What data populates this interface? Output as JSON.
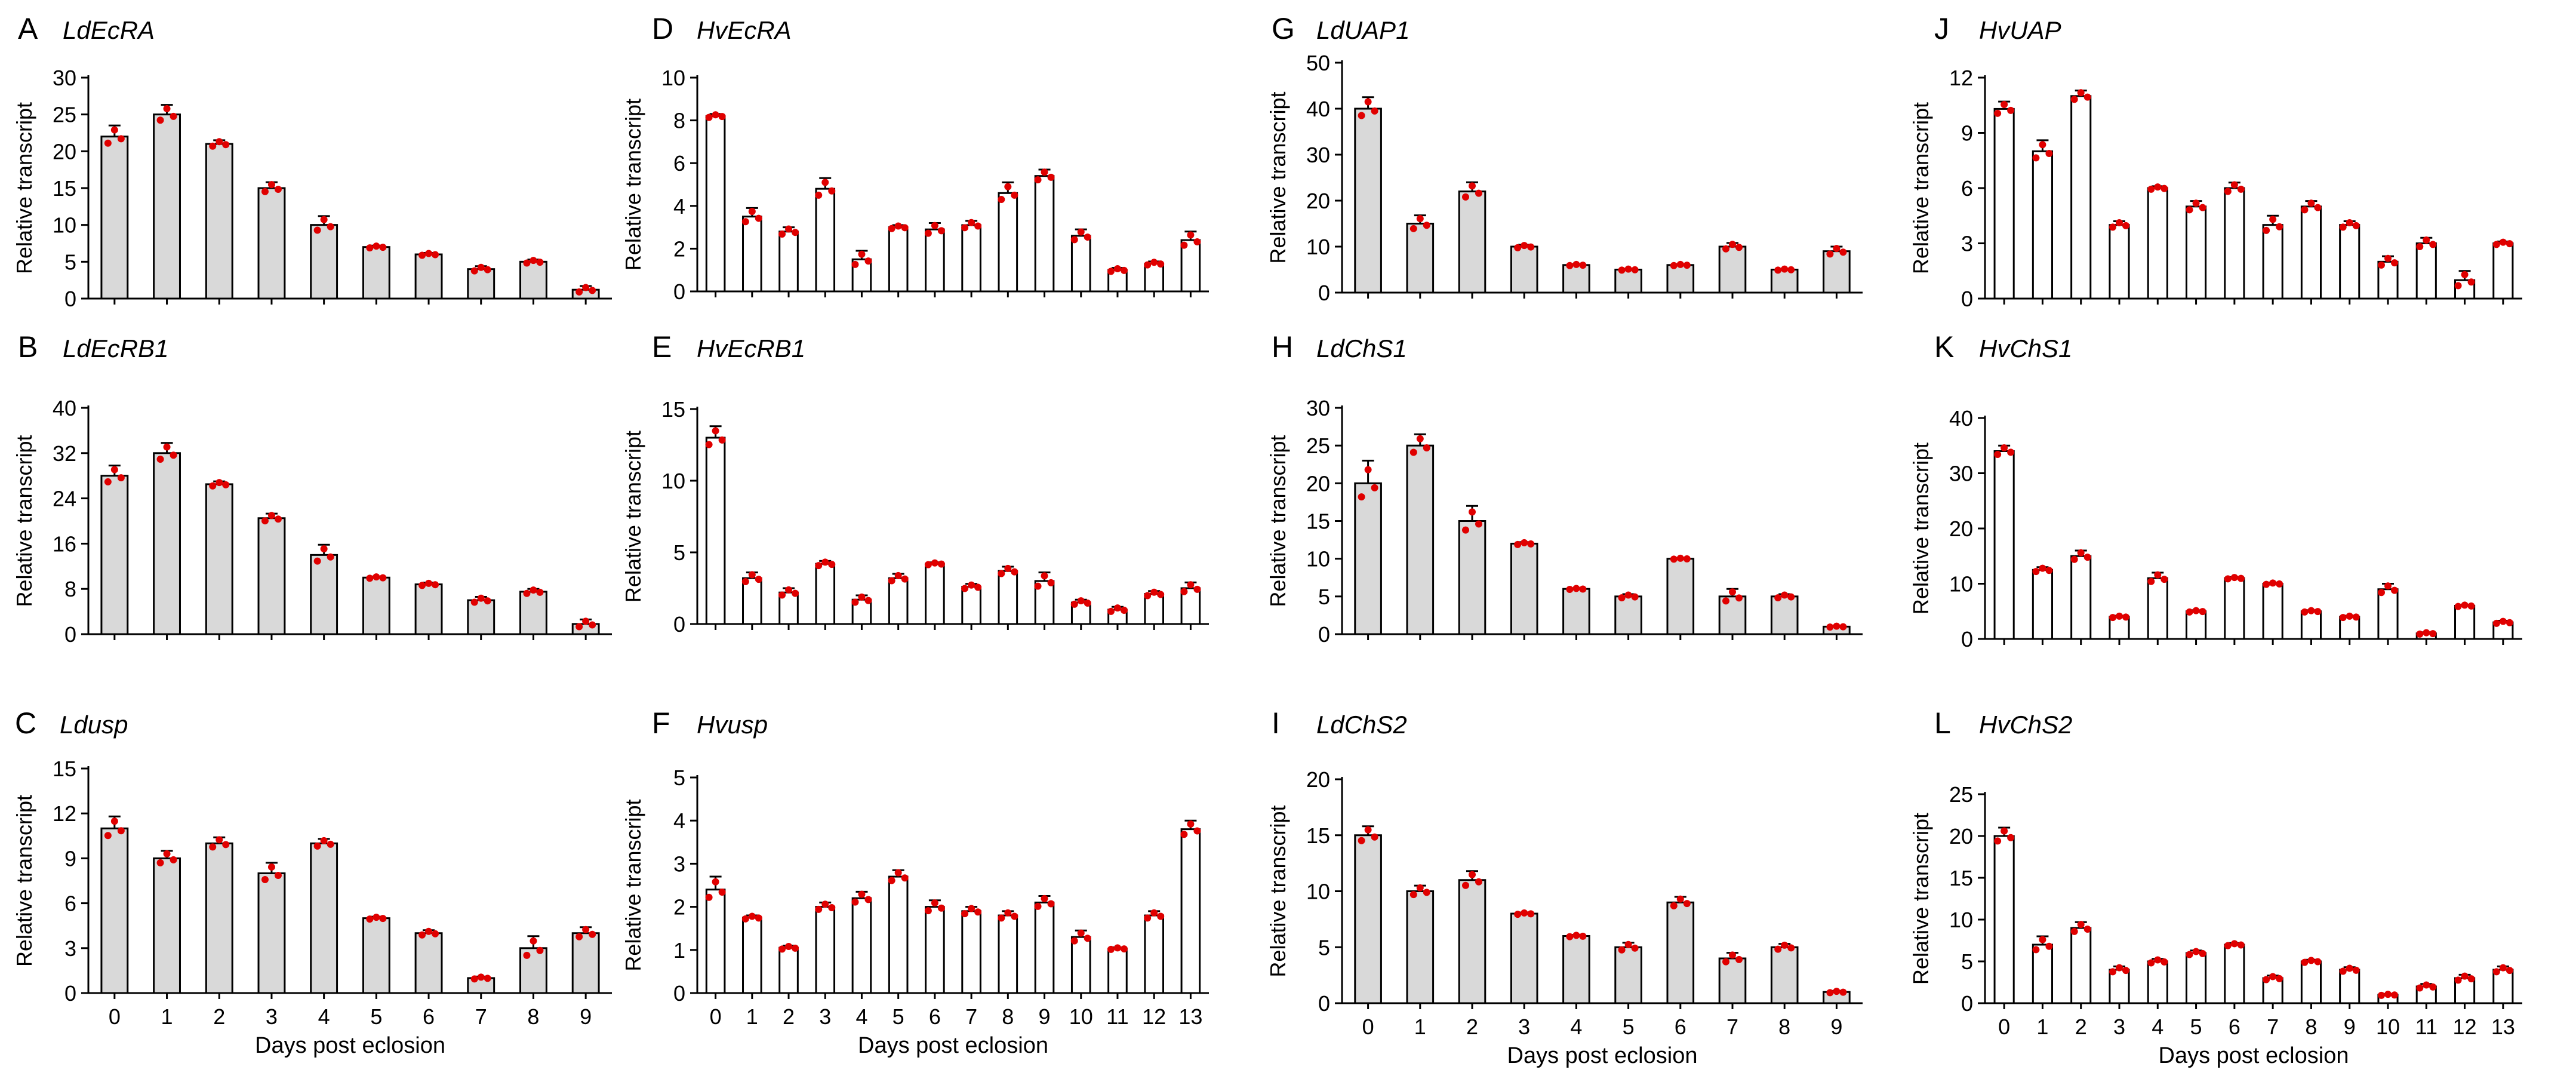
{
  "chart_data": [
    {
      "type": "bar",
      "letter": "A",
      "gene": "LdEcRA",
      "ylabel": "Relative transcript",
      "xlabel": "",
      "ylim": [
        0,
        30
      ],
      "yticks": [
        0,
        5,
        10,
        15,
        20,
        25,
        30
      ],
      "categories": [
        "0",
        "1",
        "2",
        "3",
        "4",
        "5",
        "6",
        "7",
        "8",
        "9"
      ],
      "show_xticks": false,
      "values": [
        22,
        25,
        21,
        15,
        10,
        7,
        6,
        4,
        5,
        1.2
      ],
      "errors": [
        1.5,
        1.3,
        0.5,
        0.8,
        1.2,
        0.2,
        0.2,
        0.4,
        0.3,
        0.5
      ],
      "bar_fill": "gray"
    },
    {
      "type": "bar",
      "letter": "B",
      "gene": "LdEcRB1",
      "ylabel": "Relative transcript",
      "xlabel": "",
      "ylim": [
        0,
        40
      ],
      "yticks": [
        0,
        8,
        16,
        24,
        32,
        40
      ],
      "categories": [
        "0",
        "1",
        "2",
        "3",
        "4",
        "5",
        "6",
        "7",
        "8",
        "9"
      ],
      "show_xticks": false,
      "values": [
        28,
        32,
        26.5,
        20.5,
        14,
        10,
        8.8,
        6,
        7.5,
        1.8
      ],
      "errors": [
        1.8,
        1.8,
        0.5,
        0.8,
        1.8,
        0.2,
        0.3,
        0.6,
        0.5,
        0.8
      ],
      "bar_fill": "gray"
    },
    {
      "type": "bar",
      "letter": "C",
      "gene": "Ldusp",
      "ylabel": "Relative transcript",
      "xlabel": "Days post eclosion",
      "ylim": [
        0,
        15
      ],
      "yticks": [
        0,
        3,
        6,
        9,
        12,
        15
      ],
      "categories": [
        "0",
        "1",
        "2",
        "3",
        "4",
        "5",
        "6",
        "7",
        "8",
        "9"
      ],
      "show_xticks": true,
      "values": [
        11,
        9,
        10,
        8,
        10,
        5,
        4,
        1,
        3,
        4
      ],
      "errors": [
        0.8,
        0.5,
        0.4,
        0.7,
        0.3,
        0.1,
        0.2,
        0.1,
        0.8,
        0.4
      ],
      "bar_fill": "gray"
    },
    {
      "type": "bar",
      "letter": "D",
      "gene": "HvEcRA",
      "ylabel": "Relative transcript",
      "xlabel": "",
      "ylim": [
        0,
        10
      ],
      "yticks": [
        0,
        2,
        4,
        6,
        8,
        10
      ],
      "categories": [
        "0",
        "1",
        "2",
        "3",
        "4",
        "5",
        "6",
        "7",
        "8",
        "9",
        "10",
        "11",
        "12",
        "13"
      ],
      "show_xticks": false,
      "values": [
        8.2,
        3.5,
        2.8,
        4.8,
        1.5,
        3,
        2.9,
        3.1,
        4.6,
        5.4,
        2.6,
        1,
        1.3,
        2.4
      ],
      "errors": [
        0.1,
        0.4,
        0.2,
        0.5,
        0.4,
        0.1,
        0.3,
        0.2,
        0.5,
        0.3,
        0.3,
        0.1,
        0.1,
        0.4
      ],
      "bar_fill": "white"
    },
    {
      "type": "bar",
      "letter": "E",
      "gene": "HvEcRB1",
      "ylabel": "Relative transcript",
      "xlabel": "",
      "ylim": [
        0,
        15
      ],
      "yticks": [
        0,
        5,
        10,
        15
      ],
      "categories": [
        "0",
        "1",
        "2",
        "3",
        "4",
        "5",
        "6",
        "7",
        "8",
        "9",
        "10",
        "11",
        "12",
        "13"
      ],
      "show_xticks": false,
      "values": [
        13,
        3.2,
        2.2,
        4.2,
        1.7,
        3.2,
        4.2,
        2.6,
        3.7,
        3,
        1.5,
        1,
        2.1,
        2.5
      ],
      "errors": [
        0.8,
        0.4,
        0.3,
        0.2,
        0.3,
        0.3,
        0.1,
        0.2,
        0.3,
        0.6,
        0.2,
        0.2,
        0.2,
        0.4
      ],
      "bar_fill": "white"
    },
    {
      "type": "bar",
      "letter": "F",
      "gene": "Hvusp",
      "ylabel": "Relative transcript",
      "xlabel": "Days post eclosion",
      "ylim": [
        0,
        5
      ],
      "yticks": [
        0,
        1,
        2,
        3,
        4,
        5
      ],
      "categories": [
        "0",
        "1",
        "2",
        "3",
        "4",
        "5",
        "6",
        "7",
        "8",
        "9",
        "10",
        "11",
        "12",
        "13"
      ],
      "show_xticks": true,
      "values": [
        2.4,
        1.75,
        1.05,
        2,
        2.2,
        2.7,
        2,
        1.9,
        1.8,
        2.1,
        1.3,
        1.03,
        1.8,
        3.8
      ],
      "errors": [
        0.3,
        0.05,
        0.05,
        0.1,
        0.15,
        0.15,
        0.15,
        0.1,
        0.1,
        0.15,
        0.15,
        0.03,
        0.1,
        0.2
      ],
      "bar_fill": "white"
    },
    {
      "type": "bar",
      "letter": "G",
      "gene": "LdUAP1",
      "ylabel": "Relative transcript",
      "xlabel": "",
      "ylim": [
        0,
        50
      ],
      "yticks": [
        0,
        10,
        20,
        30,
        40,
        50
      ],
      "categories": [
        "0",
        "1",
        "2",
        "3",
        "4",
        "5",
        "6",
        "7",
        "8",
        "9"
      ],
      "show_xticks": false,
      "values": [
        40,
        15,
        22,
        10,
        6,
        5,
        6,
        10,
        5,
        9
      ],
      "errors": [
        2.5,
        1.8,
        2,
        0.4,
        0.2,
        0.2,
        0.2,
        0.8,
        0.2,
        1
      ],
      "bar_fill": "gray"
    },
    {
      "type": "bar",
      "letter": "H",
      "gene": "LdChS1",
      "ylabel": "Relative transcript",
      "xlabel": "",
      "ylim": [
        0,
        30
      ],
      "yticks": [
        0,
        5,
        10,
        15,
        20,
        25,
        30
      ],
      "categories": [
        "0",
        "1",
        "2",
        "3",
        "4",
        "5",
        "6",
        "7",
        "8",
        "9"
      ],
      "show_xticks": false,
      "values": [
        20,
        25,
        15,
        12,
        6,
        5,
        10,
        5,
        5,
        1
      ],
      "errors": [
        3,
        1.5,
        2,
        0.2,
        0.1,
        0.3,
        0.1,
        1,
        0.3,
        0.1
      ],
      "bar_fill": "gray"
    },
    {
      "type": "bar",
      "letter": "I",
      "gene": "LdChS2",
      "ylabel": "Relative transcript",
      "xlabel": "Days post eclosion",
      "ylim": [
        0,
        20
      ],
      "yticks": [
        0,
        5,
        10,
        15,
        20
      ],
      "categories": [
        "0",
        "1",
        "2",
        "3",
        "4",
        "5",
        "6",
        "7",
        "8",
        "9"
      ],
      "show_xticks": true,
      "values": [
        15,
        10,
        11,
        8,
        6,
        5,
        9,
        4,
        5,
        1
      ],
      "errors": [
        0.8,
        0.5,
        0.8,
        0.1,
        0.1,
        0.4,
        0.5,
        0.5,
        0.3,
        0.1
      ],
      "bar_fill": "gray"
    },
    {
      "type": "bar",
      "letter": "J",
      "gene": "HvUAP",
      "ylabel": "Relative transcript",
      "xlabel": "",
      "ylim": [
        0,
        12
      ],
      "yticks": [
        0,
        3,
        6,
        9,
        12
      ],
      "categories": [
        "0",
        "1",
        "2",
        "3",
        "4",
        "5",
        "6",
        "7",
        "8",
        "9",
        "10",
        "11",
        "12",
        "13"
      ],
      "show_xticks": false,
      "values": [
        10.3,
        8,
        11,
        4,
        6,
        5,
        6,
        4,
        5,
        4,
        2,
        3,
        1,
        3
      ],
      "errors": [
        0.4,
        0.6,
        0.3,
        0.2,
        0.1,
        0.3,
        0.3,
        0.5,
        0.3,
        0.2,
        0.3,
        0.3,
        0.5,
        0.1
      ],
      "bar_fill": "white"
    },
    {
      "type": "bar",
      "letter": "K",
      "gene": "HvChS1",
      "ylabel": "Relative transcript",
      "xlabel": "",
      "ylim": [
        0,
        40
      ],
      "yticks": [
        0,
        10,
        20,
        30,
        40
      ],
      "categories": [
        "0",
        "1",
        "2",
        "3",
        "4",
        "5",
        "6",
        "7",
        "8",
        "9",
        "10",
        "11",
        "12",
        "13"
      ],
      "show_xticks": false,
      "values": [
        34,
        12.5,
        15,
        4,
        11,
        5,
        11,
        10,
        5,
        4,
        9,
        1,
        6,
        3
      ],
      "errors": [
        1,
        0.5,
        1,
        0.2,
        1,
        0.2,
        0.2,
        0.2,
        0.2,
        0.2,
        1,
        0.2,
        0.2,
        0.3
      ],
      "bar_fill": "white"
    },
    {
      "type": "bar",
      "letter": "L",
      "gene": "HvChS2",
      "ylabel": "Relative transcript",
      "xlabel": "Days post eclosion",
      "ylim": [
        0,
        25
      ],
      "yticks": [
        0,
        5,
        10,
        15,
        20,
        25
      ],
      "categories": [
        "0",
        "1",
        "2",
        "3",
        "4",
        "5",
        "6",
        "7",
        "8",
        "9",
        "10",
        "11",
        "12",
        "13"
      ],
      "show_xticks": true,
      "values": [
        20,
        7,
        9,
        4,
        5,
        6,
        7,
        3,
        5,
        4,
        1,
        2,
        3,
        4
      ],
      "errors": [
        1,
        1,
        0.7,
        0.4,
        0.3,
        0.3,
        0.2,
        0.3,
        0.2,
        0.3,
        0.1,
        0.3,
        0.4,
        0.4
      ],
      "bar_fill": "white"
    }
  ],
  "colors": {
    "gray_bar": "#d9d9d9",
    "white_bar": "#ffffff",
    "dot": "#e00000",
    "axis": "#000000"
  }
}
